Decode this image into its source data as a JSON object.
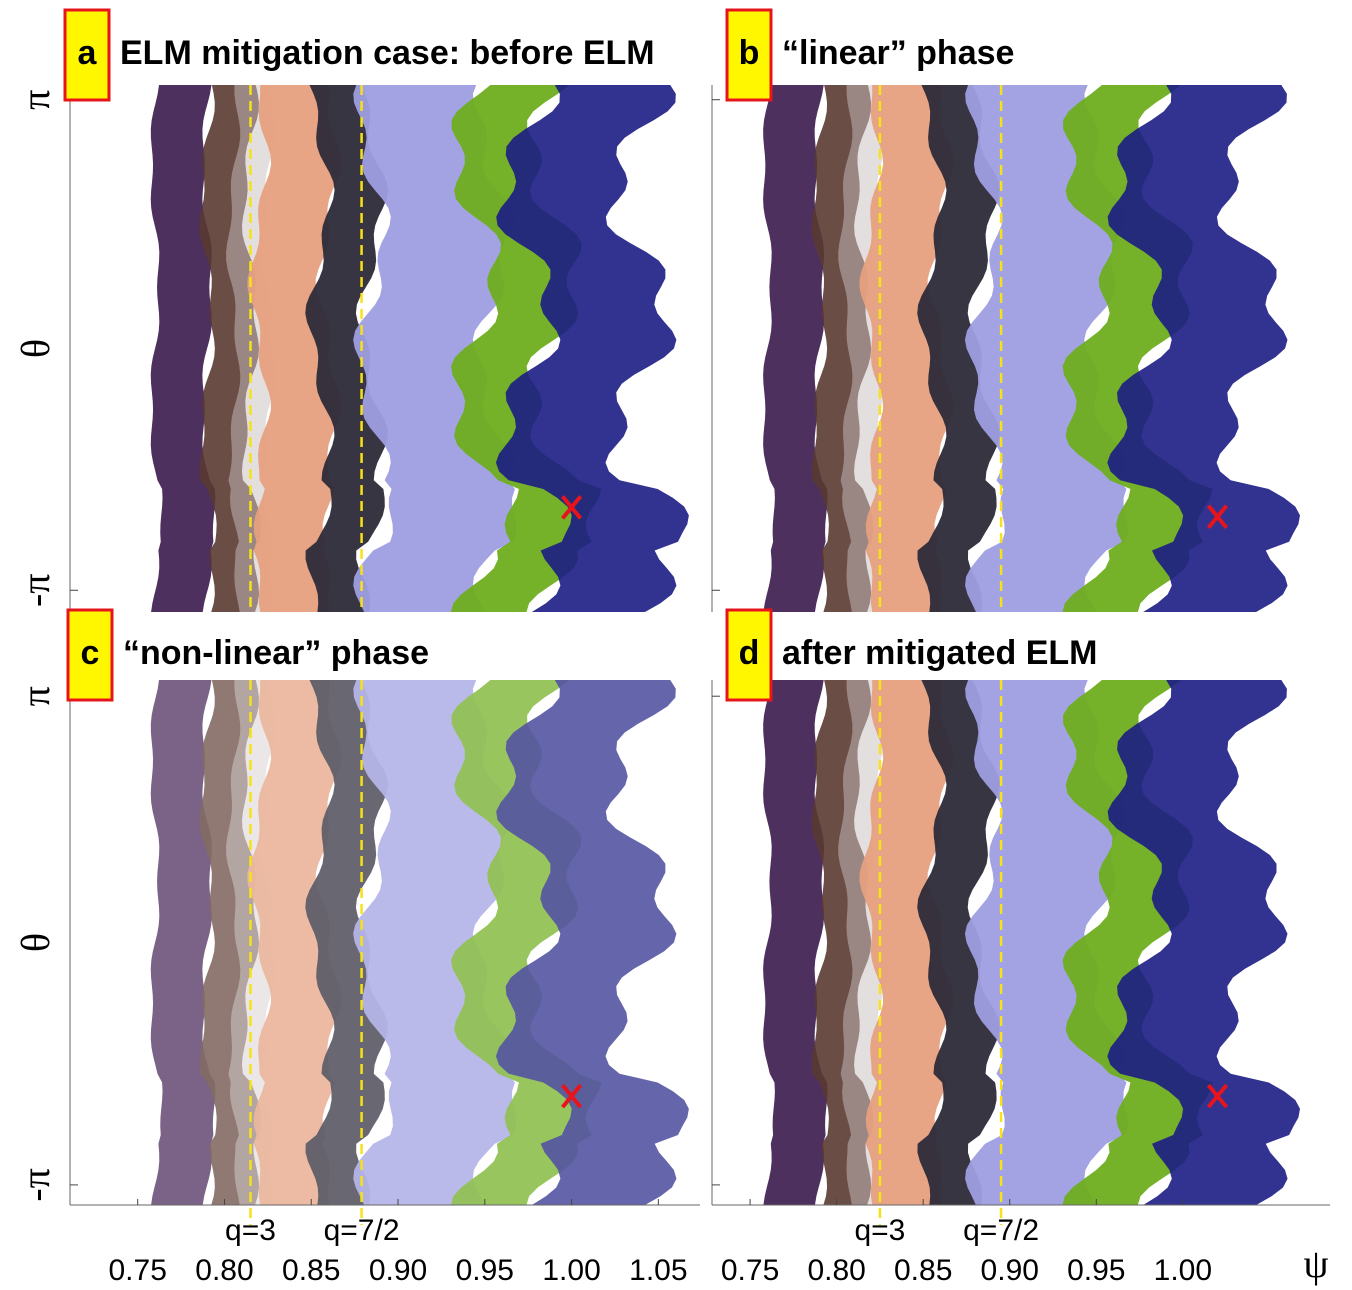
{
  "chart_data": [
    {
      "type": "poincare",
      "panel": "a",
      "title": "ELM mitigation case: before ELM",
      "ylabel": "θ",
      "xlim": [
        0.711,
        1.074
      ],
      "ylim": [
        -3.42,
        3.33
      ],
      "yticks": [
        {
          "value": 3.1416,
          "label": "π"
        },
        {
          "value": -3.1416,
          "label": "-π"
        }
      ],
      "q_lines": [
        0.815,
        0.879
      ],
      "x_point": {
        "x": 1.0,
        "y": -2.08
      }
    },
    {
      "type": "poincare",
      "panel": "b",
      "title": "“linear” phase",
      "xlim": [
        0.728,
        1.085
      ],
      "ylim": [
        -3.42,
        3.33
      ],
      "yticks": [
        {
          "value": 3.1416,
          "label": "π"
        },
        {
          "value": -3.1416,
          "label": "-π"
        }
      ],
      "q_lines": [
        0.825,
        0.895
      ],
      "x_point": {
        "x": 1.02,
        "y": -2.2
      }
    },
    {
      "type": "poincare",
      "panel": "c",
      "title": "“non-linear” phase",
      "ylabel": "θ",
      "xlim": [
        0.711,
        1.074
      ],
      "ylim": [
        -3.4,
        3.35
      ],
      "yticks": [
        {
          "value": 3.1416,
          "label": "π"
        },
        {
          "value": -3.1416,
          "label": "-π"
        }
      ],
      "xticks": [
        {
          "value": 0.75,
          "label": "0.75"
        },
        {
          "value": 0.8,
          "label": "0.80"
        },
        {
          "value": 0.85,
          "label": "0.85"
        },
        {
          "value": 0.9,
          "label": "0.90"
        },
        {
          "value": 0.95,
          "label": "0.95"
        },
        {
          "value": 1.0,
          "label": "1.00"
        },
        {
          "value": 1.05,
          "label": "1.05"
        }
      ],
      "q_lines": [
        {
          "value": 0.815,
          "label": "q=3"
        },
        {
          "value": 0.879,
          "label": "q=7/2"
        }
      ],
      "x_point": {
        "x": 1.0,
        "y": -2.0
      }
    },
    {
      "type": "poincare",
      "panel": "d",
      "title": "after mitigated ELM",
      "xlabel": "ψ",
      "xlim": [
        0.728,
        1.085
      ],
      "ylim": [
        -3.4,
        3.35
      ],
      "yticks": [
        {
          "value": 3.1416,
          "label": "π"
        },
        {
          "value": -3.1416,
          "label": "-π"
        }
      ],
      "xticks": [
        {
          "value": 0.75,
          "label": "0.75"
        },
        {
          "value": 0.8,
          "label": "0.80"
        },
        {
          "value": 0.85,
          "label": "0.85"
        },
        {
          "value": 0.9,
          "label": "0.90"
        },
        {
          "value": 0.95,
          "label": "0.95"
        },
        {
          "value": 1.0,
          "label": "1.00"
        }
      ],
      "q_lines": [
        {
          "value": 0.825,
          "label": "q=3"
        },
        {
          "value": 0.895,
          "label": "q=7/2"
        }
      ],
      "x_point": {
        "x": 1.02,
        "y": -2.0
      }
    }
  ]
}
